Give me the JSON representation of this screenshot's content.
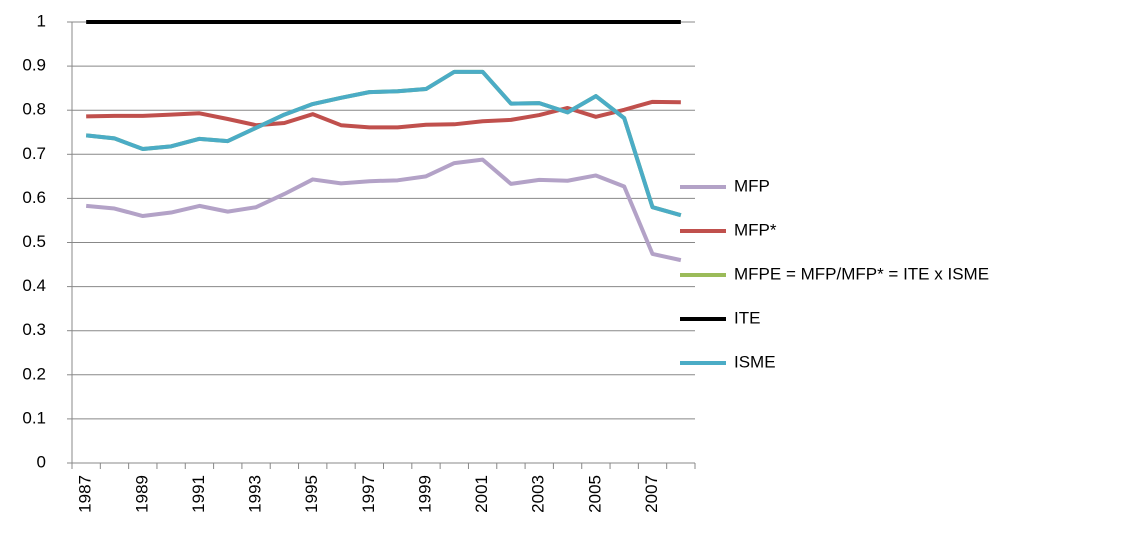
{
  "chart_data": {
    "type": "line",
    "categories": [
      "1987",
      null,
      "1989",
      null,
      "1991",
      null,
      "1993",
      null,
      "1995",
      null,
      "1997",
      null,
      "1999",
      null,
      "2001",
      null,
      "2003",
      null,
      "2005",
      null,
      "2007",
      null
    ],
    "series": [
      {
        "name": "MFP",
        "color": "#b3a2c7",
        "values": [
          0.583,
          0.577,
          0.56,
          0.568,
          0.583,
          0.57,
          0.58,
          0.61,
          0.643,
          0.634,
          0.639,
          0.641,
          0.65,
          0.68,
          0.688,
          0.633,
          0.642,
          0.64,
          0.652,
          0.627,
          0.474,
          0.46
        ]
      },
      {
        "name": "MFP*",
        "color": "#c0504d",
        "values": [
          0.786,
          0.787,
          0.787,
          0.79,
          0.793,
          0.78,
          0.766,
          0.771,
          0.791,
          0.766,
          0.761,
          0.761,
          0.767,
          0.768,
          0.775,
          0.778,
          0.789,
          0.805,
          0.785,
          0.801,
          0.819,
          0.818
        ]
      },
      {
        "name": "MFPE = MFP/MFP* = ITE x ISME",
        "color": "#9bbb59",
        "values": [
          0.743,
          0.736,
          0.712,
          0.718,
          0.735,
          0.73,
          0.76,
          0.79,
          0.814,
          0.828,
          0.841,
          0.843,
          0.848,
          0.887,
          0.887,
          0.815,
          0.816,
          0.795,
          0.832,
          0.782,
          0.58,
          0.562
        ]
      },
      {
        "name": "ITE",
        "color": "#000000",
        "values": [
          1,
          1,
          1,
          1,
          1,
          1,
          1,
          1,
          1,
          1,
          1,
          1,
          1,
          1,
          1,
          1,
          1,
          1,
          1,
          1,
          1,
          1
        ]
      },
      {
        "name": "ISME",
        "color": "#4bacc6",
        "values": [
          0.743,
          0.736,
          0.712,
          0.718,
          0.735,
          0.73,
          0.76,
          0.79,
          0.814,
          0.828,
          0.841,
          0.843,
          0.848,
          0.887,
          0.887,
          0.815,
          0.816,
          0.795,
          0.832,
          0.782,
          0.58,
          0.562
        ]
      }
    ],
    "ylim": [
      0,
      1
    ],
    "yticks": [
      0,
      0.1,
      0.2,
      0.3,
      0.4,
      0.5,
      0.6,
      0.7,
      0.8,
      0.9,
      1
    ],
    "grid": true,
    "legend": "right"
  }
}
